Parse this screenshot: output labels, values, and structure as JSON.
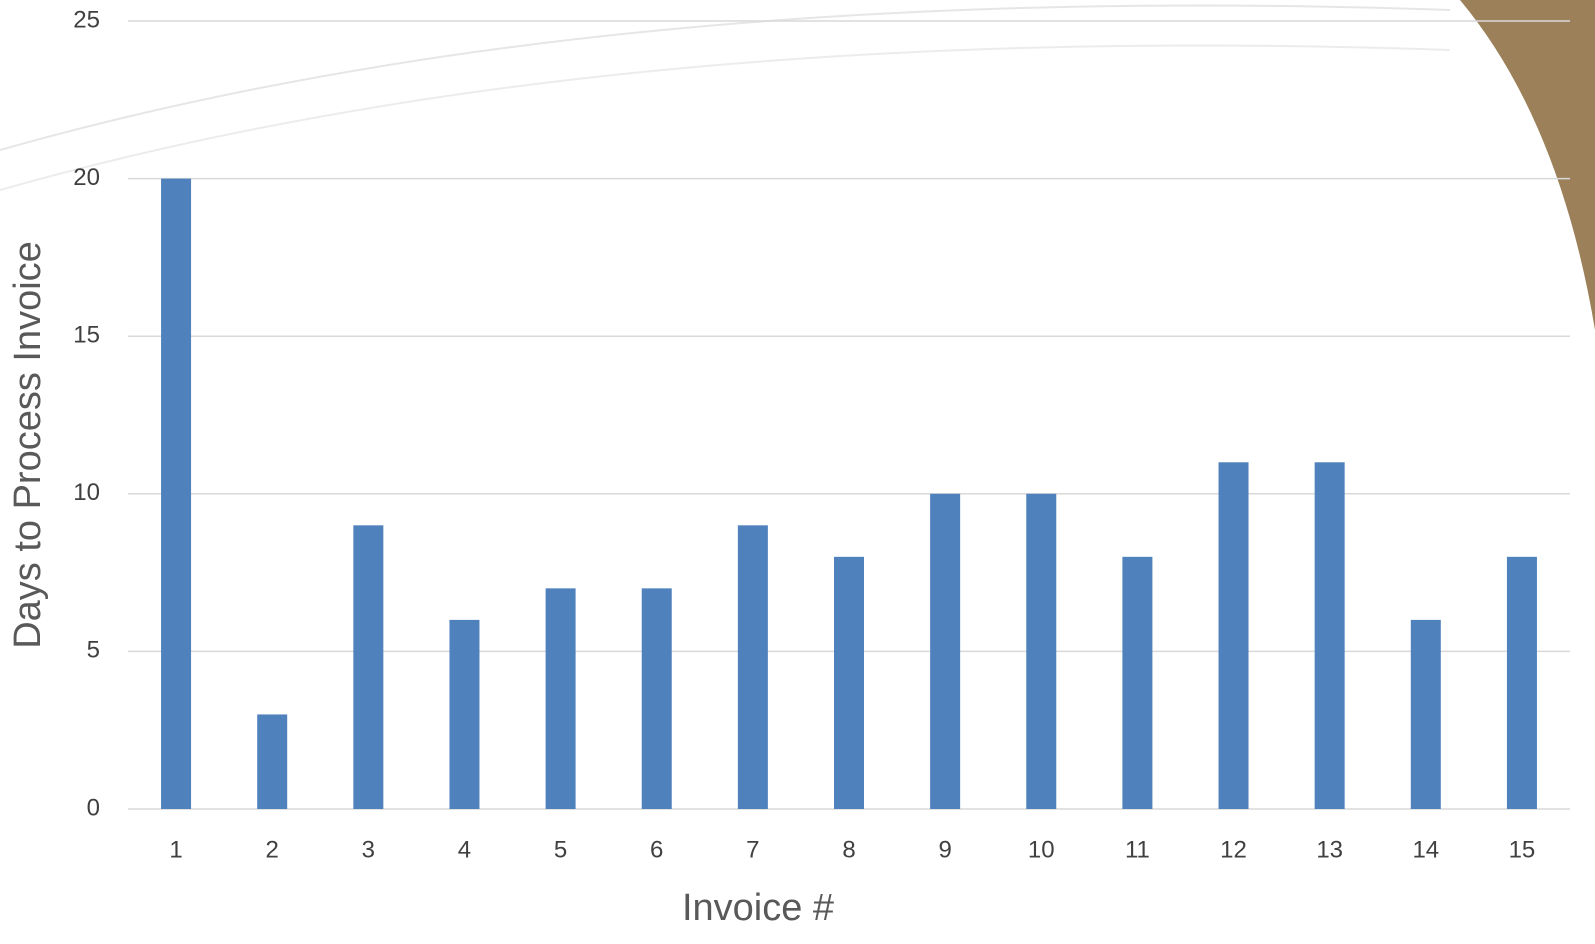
{
  "chart_data": {
    "type": "bar",
    "x_label": "Invoice #",
    "y_label": "Days to Process Invoice",
    "categories": [
      "1",
      "2",
      "3",
      "4",
      "5",
      "6",
      "7",
      "8",
      "9",
      "10",
      "11",
      "12",
      "13",
      "14",
      "15"
    ],
    "values": [
      20,
      3,
      9,
      6,
      7,
      7,
      9,
      8,
      10,
      10,
      8,
      11,
      11,
      6,
      8
    ],
    "color": "#4f81bd",
    "ylim": [
      0,
      25
    ],
    "yticks": [
      0,
      5,
      10,
      15,
      20,
      25
    ],
    "grid": true
  }
}
